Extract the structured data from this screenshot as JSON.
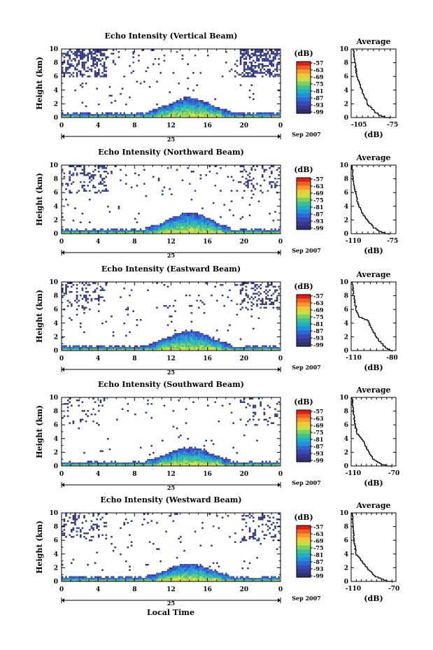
{
  "figure": {
    "x_axis_title": "Local Time",
    "date_label": "Sep 2007",
    "day_label": "25",
    "colorbar_unit": "(dB)",
    "colorbar_ticks": [
      "-57",
      "-63",
      "-69",
      "-75",
      "-81",
      "-87",
      "-93",
      "-99"
    ],
    "colorbar_colors": [
      "#d62018",
      "#f06020",
      "#f89830",
      "#f0c838",
      "#c8e040",
      "#80d060",
      "#40c090",
      "#20b0c0",
      "#2090e0",
      "#3068d0",
      "#3848b8",
      "#383890",
      "#303070"
    ],
    "background": "#ffffff"
  },
  "chart_data": [
    {
      "type": "heatmap",
      "title": "Echo Intensity (Vertical Beam)",
      "ylabel": "Height (km)",
      "xlabel": "Local Time",
      "x_ticks": [
        "0",
        "4",
        "8",
        "12",
        "16",
        "20",
        "0"
      ],
      "y_ticks": [
        "0",
        "2",
        "4",
        "6",
        "8",
        "10"
      ],
      "xlim": [
        0,
        24
      ],
      "ylim": [
        0,
        10
      ],
      "colorbar": {
        "unit": "(dB)",
        "range": [
          -99,
          -57
        ]
      },
      "profile": {
        "title": "Average",
        "xlabel": "(dB)",
        "x_ticks": [
          "-105",
          "-75"
        ],
        "xlim": [
          -112,
          -72
        ],
        "points": [
          [
            -110,
            10
          ],
          [
            -108.5,
            8
          ],
          [
            -107,
            6.2
          ],
          [
            -104.5,
            5
          ],
          [
            -101,
            3.5
          ],
          [
            -97,
            2
          ],
          [
            -90,
            0.8
          ],
          [
            -85,
            0.3
          ],
          [
            -78,
            0
          ]
        ]
      },
      "clutter": {
        "upper_left_density": 0.45,
        "upper_right_density": 0.55,
        "mid_density": 0.06
      },
      "boundary_layer": {
        "top_km": 0.9,
        "peak_hour": 14,
        "peak_top_km": 2.8
      }
    },
    {
      "type": "heatmap",
      "title": "Echo Intensity (Northward Beam)",
      "ylabel": "Height (km)",
      "xlabel": "Local Time",
      "x_ticks": [
        "0",
        "4",
        "8",
        "12",
        "16",
        "20",
        "0"
      ],
      "y_ticks": [
        "0",
        "2",
        "4",
        "6",
        "8",
        "10"
      ],
      "xlim": [
        0,
        24
      ],
      "ylim": [
        0,
        10
      ],
      "colorbar": {
        "unit": "(dB)",
        "range": [
          -99,
          -57
        ]
      },
      "profile": {
        "title": "Average",
        "xlabel": "(dB)",
        "x_ticks": [
          "-110",
          "-75"
        ],
        "xlim": [
          -112,
          -72
        ],
        "points": [
          [
            -111,
            10
          ],
          [
            -110.5,
            8
          ],
          [
            -108,
            6
          ],
          [
            -106,
            4.5
          ],
          [
            -102,
            3
          ],
          [
            -97,
            2
          ],
          [
            -92,
            1
          ],
          [
            -85,
            0.3
          ],
          [
            -78,
            0
          ]
        ]
      },
      "clutter": {
        "upper_left_density": 0.25,
        "upper_right_density": 0.2,
        "mid_density": 0.05
      },
      "boundary_layer": {
        "top_km": 0.9,
        "peak_hour": 14,
        "peak_top_km": 3.0
      }
    },
    {
      "type": "heatmap",
      "title": "Echo Intensity (Eastward Beam)",
      "ylabel": "Height (km)",
      "xlabel": "Local Time",
      "x_ticks": [
        "0",
        "4",
        "8",
        "12",
        "16",
        "20",
        "0"
      ],
      "y_ticks": [
        "0",
        "2",
        "4",
        "6",
        "8",
        "10"
      ],
      "xlim": [
        0,
        24
      ],
      "ylim": [
        0,
        10
      ],
      "colorbar": {
        "unit": "(dB)",
        "range": [
          -99,
          -57
        ]
      },
      "profile": {
        "title": "Average",
        "xlabel": "(dB)",
        "x_ticks": [
          "-110",
          "-80"
        ],
        "xlim": [
          -112,
          -77
        ],
        "points": [
          [
            -111,
            10
          ],
          [
            -110,
            8
          ],
          [
            -108,
            6
          ],
          [
            -106,
            5
          ],
          [
            -99,
            4.5
          ],
          [
            -95,
            3
          ],
          [
            -90,
            1.5
          ],
          [
            -85,
            0.5
          ],
          [
            -80,
            0
          ]
        ]
      },
      "clutter": {
        "upper_left_density": 0.2,
        "upper_right_density": 0.3,
        "mid_density": 0.05
      },
      "boundary_layer": {
        "top_km": 0.9,
        "peak_hour": 14,
        "peak_top_km": 2.8
      }
    },
    {
      "type": "heatmap",
      "title": "Echo Intensity (Southward Beam)",
      "ylabel": "Height (km)",
      "xlabel": "Local Time",
      "x_ticks": [
        "0",
        "4",
        "8",
        "12",
        "16",
        "20",
        "0"
      ],
      "y_ticks": [
        "0",
        "2",
        "4",
        "6",
        "8",
        "10"
      ],
      "xlim": [
        0,
        24
      ],
      "ylim": [
        0,
        10
      ],
      "colorbar": {
        "unit": "(dB)",
        "range": [
          -99,
          -57
        ]
      },
      "profile": {
        "title": "Average",
        "xlabel": "(dB)",
        "x_ticks": [
          "-110",
          "-70"
        ],
        "xlim": [
          -112,
          -68
        ],
        "points": [
          [
            -111,
            10
          ],
          [
            -110,
            8
          ],
          [
            -108,
            6
          ],
          [
            -106,
            4.8
          ],
          [
            -101,
            4
          ],
          [
            -96,
            2.5
          ],
          [
            -90,
            1
          ],
          [
            -82,
            0.3
          ],
          [
            -72,
            0
          ]
        ]
      },
      "clutter": {
        "upper_left_density": 0.15,
        "upper_right_density": 0.15,
        "mid_density": 0.04
      },
      "boundary_layer": {
        "top_km": 0.8,
        "peak_hour": 14,
        "peak_top_km": 2.6
      }
    },
    {
      "type": "heatmap",
      "title": "Echo Intensity (Westward Beam)",
      "ylabel": "Height (km)",
      "xlabel": "Local Time",
      "x_ticks": [
        "0",
        "4",
        "8",
        "12",
        "16",
        "20",
        "0"
      ],
      "y_ticks": [
        "0",
        "2",
        "4",
        "6",
        "8",
        "10"
      ],
      "xlim": [
        0,
        24
      ],
      "ylim": [
        0,
        10
      ],
      "colorbar": {
        "unit": "(dB)",
        "range": [
          -99,
          -57
        ]
      },
      "profile": {
        "title": "Average",
        "xlabel": "(dB)",
        "x_ticks": [
          "-110",
          "-70"
        ],
        "xlim": [
          -112,
          -68
        ],
        "points": [
          [
            -111,
            10
          ],
          [
            -110,
            8
          ],
          [
            -109,
            6
          ],
          [
            -107,
            4
          ],
          [
            -102,
            3.2
          ],
          [
            -96,
            2
          ],
          [
            -88,
            0.8
          ],
          [
            -80,
            0.3
          ],
          [
            -72,
            0
          ]
        ]
      },
      "clutter": {
        "upper_left_density": 0.2,
        "upper_right_density": 0.2,
        "mid_density": 0.04
      },
      "boundary_layer": {
        "top_km": 0.9,
        "peak_hour": 14,
        "peak_top_km": 2.5
      }
    }
  ]
}
